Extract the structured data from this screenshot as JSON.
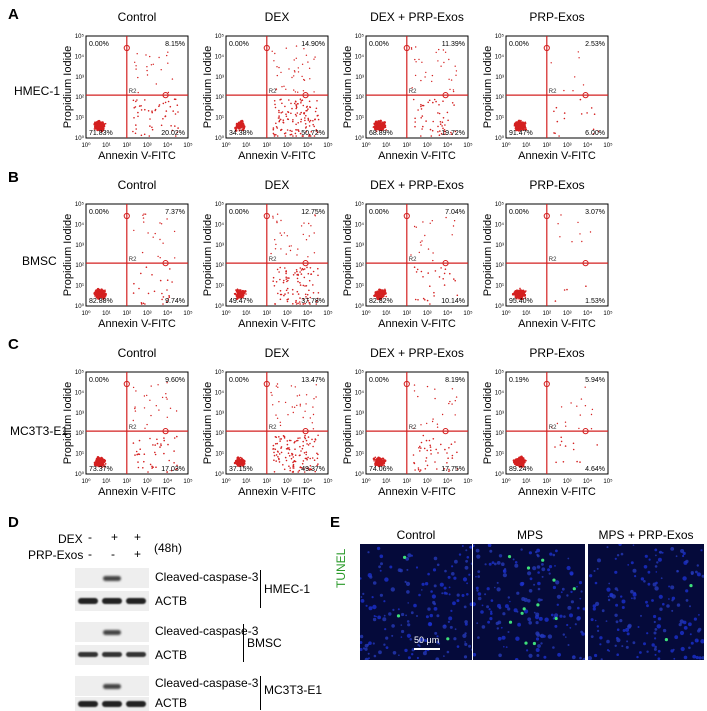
{
  "panels": {
    "A": {
      "label": "A",
      "row_label": "HMEC-1",
      "cols": [
        {
          "title": "Control",
          "ul": "0.00%",
          "ur": "8.15%",
          "ll": "71.83%",
          "lr": "20.02%"
        },
        {
          "title": "DEX",
          "ul": "0.00%",
          "ur": "14.90%",
          "ll": "34.38%",
          "lr": "50.72%"
        },
        {
          "title": "DEX + PRP-Exos",
          "ul": "0.00%",
          "ur": "11.39%",
          "ll": "68.89%",
          "lr": "19.72%"
        },
        {
          "title": "PRP-Exos",
          "ul": "0.00%",
          "ur": "2.53%",
          "ll": "91.47%",
          "lr": "6.00%"
        }
      ]
    },
    "B": {
      "label": "B",
      "row_label": "BMSC",
      "cols": [
        {
          "title": "Control",
          "ul": "0.00%",
          "ur": "7.37%",
          "ll": "82.88%",
          "lr": "9.74%"
        },
        {
          "title": "DEX",
          "ul": "0.00%",
          "ur": "12.75%",
          "ll": "49.47%",
          "lr": "37.78%"
        },
        {
          "title": "DEX + PRP-Exos",
          "ul": "0.00%",
          "ur": "7.04%",
          "ll": "82.82%",
          "lr": "10.14%"
        },
        {
          "title": "PRP-Exos",
          "ul": "0.00%",
          "ur": "3.07%",
          "ll": "95.40%",
          "lr": "1.53%"
        }
      ]
    },
    "C": {
      "label": "C",
      "row_label": "MC3T3-E1",
      "cols": [
        {
          "title": "Control",
          "ul": "0.00%",
          "ur": "9.60%",
          "ll": "73.37%",
          "lr": "17.03%"
        },
        {
          "title": "DEX",
          "ul": "0.00%",
          "ur": "13.47%",
          "ll": "37.15%",
          "lr": "49.37%"
        },
        {
          "title": "DEX + PRP-Exos",
          "ul": "0.00%",
          "ur": "8.19%",
          "ll": "74.06%",
          "lr": "17.75%"
        },
        {
          "title": "PRP-Exos",
          "ul": "0.19%",
          "ur": "5.94%",
          "ll": "89.24%",
          "lr": "4.64%"
        }
      ]
    }
  },
  "axis": {
    "x_label": "Annexin V-FITC",
    "y_label": "Propidium Iodide",
    "gate": "R2",
    "ticks": [
      "10⁰",
      "10¹",
      "10²",
      "10³",
      "10⁴",
      "10⁵"
    ]
  },
  "panel_d": {
    "label": "D",
    "dex_label": "DEX",
    "prp_label": "PRP-Exos",
    "time": "(48h)",
    "dex_signs": [
      "-",
      "+",
      "+"
    ],
    "prp_signs": [
      "-",
      "-",
      "+"
    ],
    "groups": [
      {
        "cell": "HMEC-1",
        "top": "Cleaved-caspase-3",
        "bottom": "ACTB"
      },
      {
        "cell": "BMSC",
        "top": "Cleaved-caspase-3",
        "bottom": "ACTB"
      },
      {
        "cell": "MC3T3-E1",
        "top": "Cleaved-caspase-3",
        "bottom": "ACTB"
      }
    ]
  },
  "panel_e": {
    "label": "E",
    "titles": [
      "Control",
      "MPS",
      "MPS + PRP-Exos"
    ],
    "stain": "TUNEL",
    "scale_bar": "50 μm"
  },
  "colors": {
    "red": "#d42020",
    "tunel": "#2a9a2a",
    "tissue": "#0b1a8a"
  }
}
